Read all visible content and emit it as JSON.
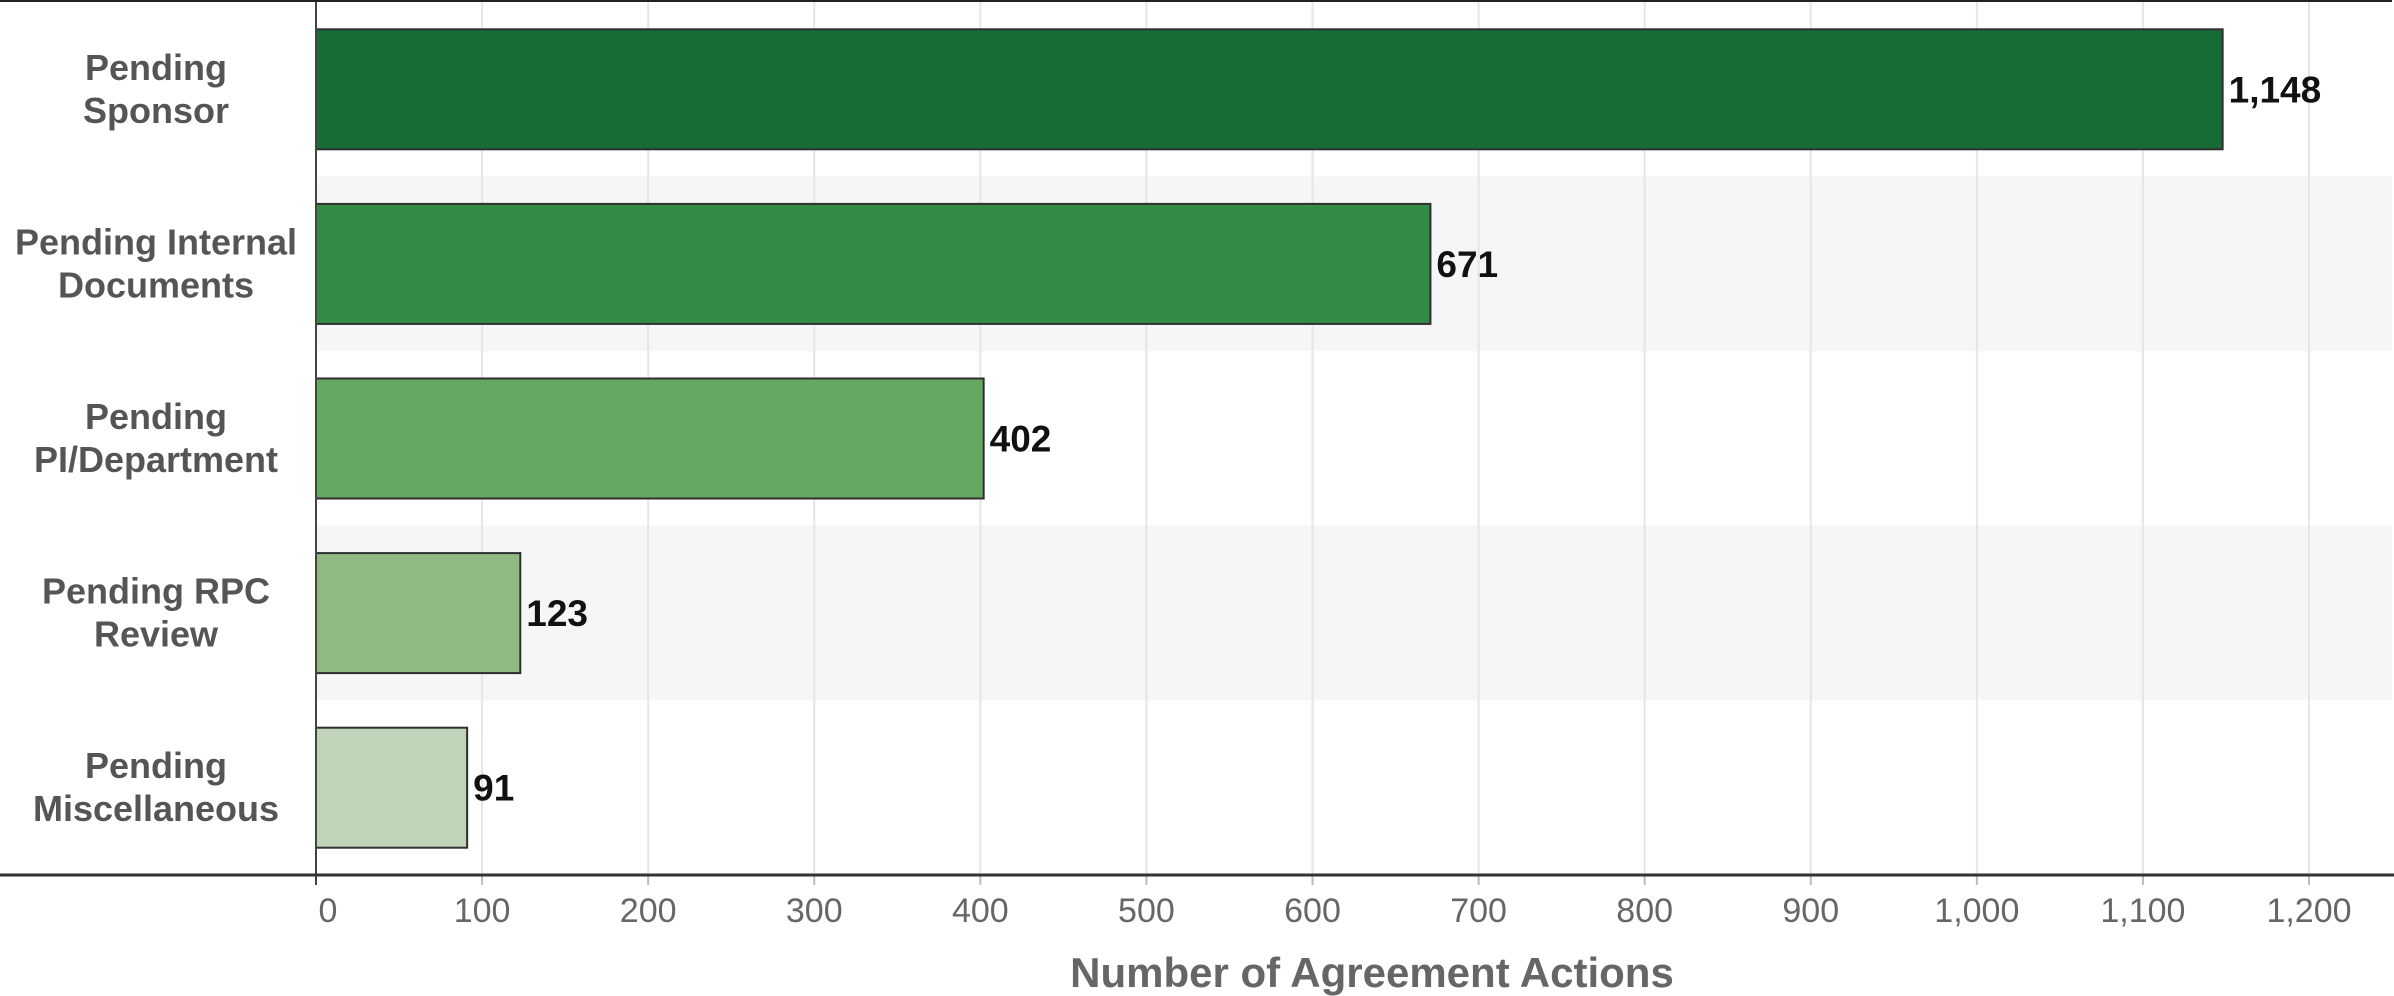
{
  "chart_data": {
    "type": "bar",
    "orientation": "horizontal",
    "categories": [
      [
        "Pending",
        "Sponsor"
      ],
      [
        "Pending Internal",
        "Documents"
      ],
      [
        "Pending",
        "PI/Department"
      ],
      [
        "Pending RPC",
        "Review"
      ],
      [
        "Pending",
        "Miscellaneous"
      ]
    ],
    "values": [
      1148,
      671,
      402,
      123,
      91
    ],
    "value_labels": [
      "1,148",
      "671",
      "402",
      "123",
      "91"
    ],
    "bar_colors": [
      "#176c36",
      "#348b48",
      "#65a862",
      "#8fba81",
      "#c0d4b9"
    ],
    "xlabel": "Number of Agreement Actions",
    "xlim": [
      0,
      1250
    ],
    "xticks": [
      {
        "value": 0,
        "label": "0"
      },
      {
        "value": 100,
        "label": "100"
      },
      {
        "value": 200,
        "label": "200"
      },
      {
        "value": 300,
        "label": "300"
      },
      {
        "value": 400,
        "label": "400"
      },
      {
        "value": 500,
        "label": "500"
      },
      {
        "value": 600,
        "label": "600"
      },
      {
        "value": 700,
        "label": "700"
      },
      {
        "value": 800,
        "label": "800"
      },
      {
        "value": 900,
        "label": "900"
      },
      {
        "value": 1000,
        "label": "1,000"
      },
      {
        "value": 1100,
        "label": "1,100"
      },
      {
        "value": 1200,
        "label": "1,200"
      }
    ],
    "grid": true,
    "banded_rows": true,
    "legend": "none"
  }
}
